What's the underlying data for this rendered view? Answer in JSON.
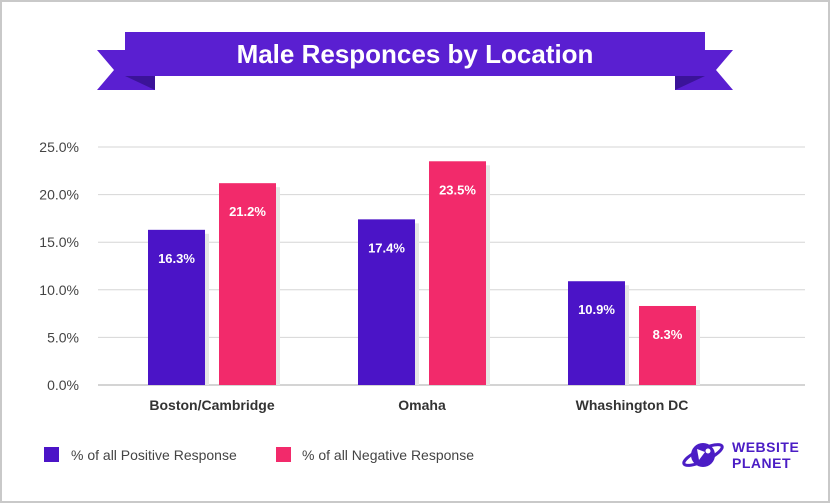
{
  "chart_data": {
    "type": "bar",
    "title": "Male Responces by Location",
    "categories": [
      "Boston/Cambridge",
      "Omaha",
      "Whashington DC"
    ],
    "series": [
      {
        "name": "% of all Positive Response",
        "values": [
          16.3,
          17.4,
          10.9
        ],
        "labels": [
          "16.3%",
          "17.4%",
          "10.9%"
        ],
        "color": "#4b14c7"
      },
      {
        "name": "% of all Negative Response",
        "values": [
          21.2,
          23.5,
          8.3
        ],
        "labels": [
          "21.2%",
          "23.5%",
          "8.3%"
        ],
        "color": "#f22a6b"
      }
    ],
    "yticks": [
      0,
      5,
      10,
      15,
      20,
      25
    ],
    "ytick_labels": [
      "0.0%",
      "5.0%",
      "10.0%",
      "15.0%",
      "20.0%",
      "25.0%"
    ],
    "ylim": [
      0,
      25
    ],
    "grid": true,
    "legend": "bottom-left"
  },
  "logo": {
    "line1": "WEBSITE",
    "line2": "PLANET"
  },
  "colors": {
    "ribbon": "#5a1fd1",
    "ribbon_dark": "#3b1399",
    "grid": "#d6d6d6",
    "shadow": "#e6e6e6"
  }
}
